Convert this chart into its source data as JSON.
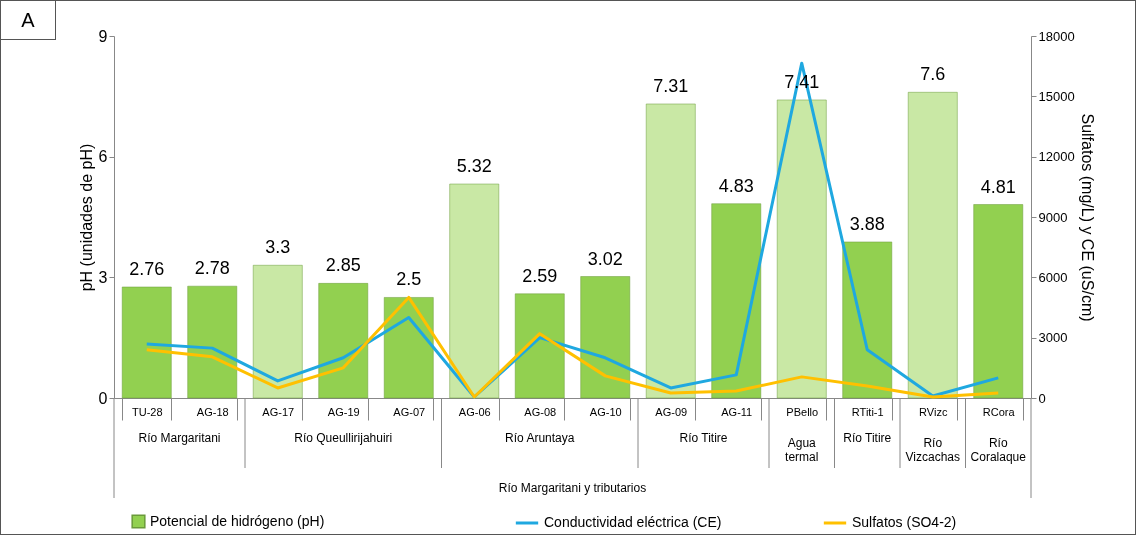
{
  "chart_data": {
    "type": "bar",
    "title": "A",
    "categories": [
      "TU-28",
      "AG-18",
      "AG-17",
      "AG-19",
      "AG-07",
      "AG-06",
      "AG-08",
      "AG-10",
      "AG-09",
      "AG-11",
      "PBello",
      "RTiti-1",
      "RVizc",
      "RCora"
    ],
    "series": [
      {
        "name": "Potencial de hidrógeno (pH)",
        "color": "#92d050",
        "colors": [
          "#92d050",
          "#92d050",
          "#c9e8a5",
          "#92d050",
          "#92d050",
          "#c9e8a5",
          "#92d050",
          "#92d050",
          "#c9e8a5",
          "#92d050",
          "#c9e8a5",
          "#92d050",
          "#c9e8a5",
          "#92d050"
        ],
        "values": [
          2.76,
          2.78,
          3.3,
          2.85,
          2.5,
          5.32,
          2.59,
          3.02,
          7.31,
          4.83,
          7.41,
          3.88,
          7.6,
          4.81
        ],
        "value_labels": [
          "2.76",
          "2.78",
          "3.3",
          "2.85",
          "2.5",
          "5.32",
          "2.59",
          "3.02",
          "7.31",
          "4.83",
          "7.41",
          "3.88",
          "7.6",
          "4.81"
        ]
      },
      {
        "name": "Conductividad eléctrica (CE)",
        "type": "line",
        "axis": "y2",
        "color": "#1fa8e0",
        "values": [
          2680,
          2480,
          850,
          2000,
          4000,
          50,
          3000,
          2000,
          500,
          1150,
          16650,
          2400,
          100,
          1000
        ]
      },
      {
        "name": "Sulfatos (SO4-2)",
        "type": "line",
        "axis": "y2",
        "color": "#ffc000",
        "values": [
          2400,
          2050,
          500,
          1500,
          5000,
          50,
          3200,
          1100,
          250,
          350,
          1050,
          600,
          50,
          250
        ]
      }
    ],
    "ylabel": "pH (unidades de pH)",
    "y2label": "Sulfatos (mg/L) y CE (uS/cm)",
    "ylim": [
      0,
      9
    ],
    "yticks": [
      0,
      3,
      6,
      9
    ],
    "y2lim": [
      0,
      18000
    ],
    "y2ticks": [
      0,
      3000,
      6000,
      9000,
      12000,
      15000,
      18000
    ],
    "annotations": [
      "Río Margaritani",
      "Río Queullirijahuiri",
      "Río Aruntaya",
      "Río Titire",
      "Agua termal",
      "Río Titire",
      "Río Vizcachas",
      "Río Coralaque",
      "Río Margaritani y tributarios"
    ],
    "grid": false,
    "legend": "bottom",
    "line_style": "solid",
    "marker": "none"
  }
}
